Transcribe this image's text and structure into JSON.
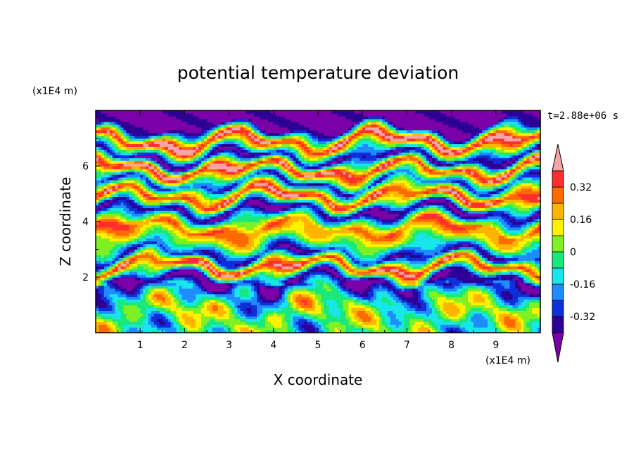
{
  "chart_data": {
    "type": "heatmap",
    "title": "potential temperature deviation",
    "xlabel": "X coordinate",
    "ylabel": "Z coordinate",
    "x_units": "(x1E4 m)",
    "y_units": "(x1E4 m)",
    "time_label": "t=2.88e+06 s",
    "xlim": [
      0,
      10
    ],
    "ylim": [
      0,
      8
    ],
    "x_ticks": [
      "1",
      "2",
      "3",
      "4",
      "5",
      "6",
      "7",
      "8",
      "9"
    ],
    "y_ticks": [
      "2",
      "4",
      "6"
    ],
    "colorbar": {
      "labels": [
        "0.32",
        "0.16",
        "0",
        "-0.16",
        "-0.32"
      ],
      "label_values": [
        0.32,
        0.16,
        0,
        -0.16,
        -0.32
      ],
      "vmin": -0.4,
      "vmax": 0.4,
      "step": 0.08,
      "extend": "both",
      "colors": [
        "#7b00a8",
        "#2d0096",
        "#0e2fd9",
        "#1e8cff",
        "#17e6ea",
        "#19e87a",
        "#7ff024",
        "#fff200",
        "#ffb400",
        "#ff6a00",
        "#ff2f2f",
        "#f5a5a5"
      ]
    },
    "bands": [
      {
        "z": 7.4,
        "value": -0.45
      },
      {
        "z": 6.9,
        "value": 0.45
      },
      {
        "z": 6.3,
        "value": -0.42
      },
      {
        "z": 5.9,
        "value": 0.42
      },
      {
        "z": 5.4,
        "value": -0.3
      },
      {
        "z": 4.9,
        "value": 0.4
      },
      {
        "z": 4.4,
        "value": -0.44
      },
      {
        "z": 3.8,
        "value": 0.3
      },
      {
        "z": 3.3,
        "value": 0.05
      },
      {
        "z": 2.8,
        "value": -0.35
      },
      {
        "z": 2.4,
        "value": 0.4
      },
      {
        "z": 1.9,
        "value": -0.45
      },
      {
        "z": 1.4,
        "value": -0.1
      },
      {
        "z": 0.8,
        "value": 0.02
      },
      {
        "z": 0.2,
        "value": -0.05
      }
    ]
  }
}
